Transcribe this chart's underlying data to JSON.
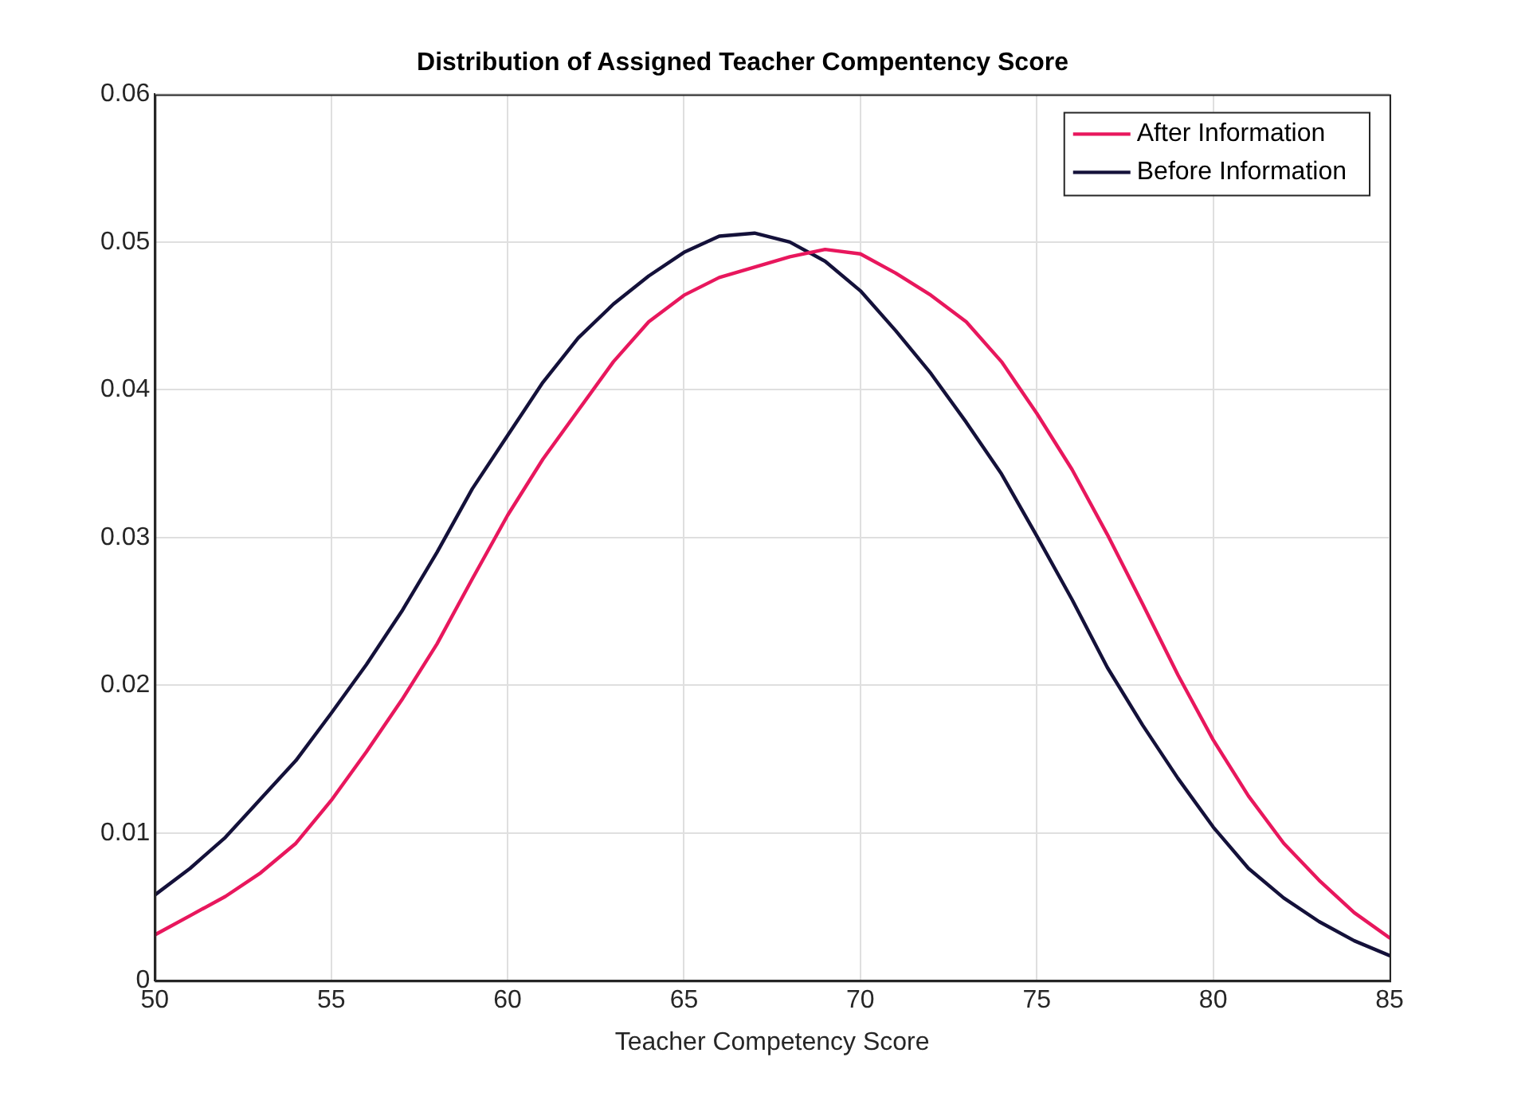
{
  "chart_data": {
    "type": "line",
    "title": "Distribution of Assigned Teacher Compentency Score",
    "xlabel": "Teacher Competency Score",
    "x": [
      50,
      51,
      52,
      53,
      54,
      55,
      56,
      57,
      58,
      59,
      60,
      61,
      62,
      63,
      64,
      65,
      66,
      67,
      68,
      69,
      70,
      71,
      72,
      73,
      74,
      75,
      76,
      77,
      78,
      79,
      80,
      81,
      82,
      83,
      84,
      85
    ],
    "series": [
      {
        "name": "After Information",
        "color": "#e8175d",
        "values": [
          0.0031,
          0.0044,
          0.0057,
          0.0073,
          0.0093,
          0.0122,
          0.0155,
          0.019,
          0.0228,
          0.0272,
          0.0315,
          0.0353,
          0.0386,
          0.0419,
          0.0446,
          0.0464,
          0.0476,
          0.0483,
          0.049,
          0.0495,
          0.0492,
          0.0479,
          0.0464,
          0.0446,
          0.0419,
          0.0384,
          0.0346,
          0.0302,
          0.0255,
          0.0207,
          0.0163,
          0.0125,
          0.0093,
          0.0068,
          0.0046,
          0.0029
        ]
      },
      {
        "name": "Before Information",
        "color": "#14113a",
        "values": [
          0.0058,
          0.0076,
          0.0097,
          0.0123,
          0.0149,
          0.0181,
          0.0214,
          0.025,
          0.029,
          0.0333,
          0.0369,
          0.0405,
          0.0435,
          0.0458,
          0.0477,
          0.0493,
          0.0504,
          0.0506,
          0.05,
          0.0487,
          0.0467,
          0.044,
          0.0411,
          0.0378,
          0.0343,
          0.0301,
          0.0258,
          0.0212,
          0.0173,
          0.0137,
          0.0104,
          0.0076,
          0.0056,
          0.004,
          0.0027,
          0.0017
        ]
      }
    ],
    "xlim": [
      50,
      85
    ],
    "xticks": [
      50,
      55,
      60,
      65,
      70,
      75,
      80,
      85
    ],
    "ylim": [
      0,
      0.06
    ],
    "yticks": [
      0,
      0.01,
      0.02,
      0.03,
      0.04,
      0.05,
      0.06
    ],
    "grid": true,
    "legend": "top right",
    "marker": "none",
    "line_style": "solid"
  }
}
